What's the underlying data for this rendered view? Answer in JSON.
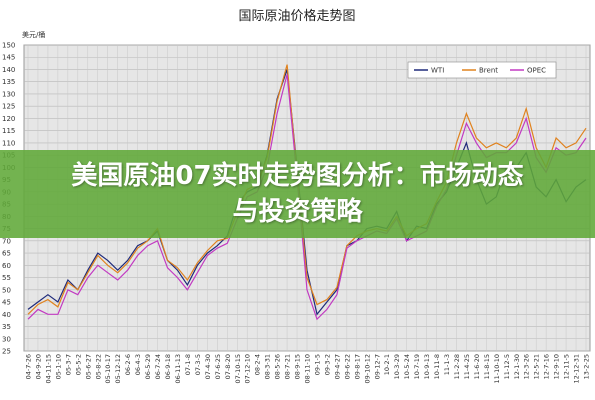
{
  "chart_data": {
    "type": "line",
    "title": "国际原油价格走势图",
    "y_label": "美元/桶",
    "annotation": "美国原油07实时走势图分析：市场动态与投资策略",
    "categories": [
      "04-7-26",
      "04-9-20",
      "04-11-15",
      "05-1-10",
      "05-3-7",
      "05-5-2",
      "05-6-27",
      "05-8-22",
      "05-10-17",
      "05-12-12",
      "06-2-6",
      "06-4-3",
      "06-5-29",
      "06-7-24",
      "06-9-18",
      "06-11-13",
      "07-1-8",
      "07-3-5",
      "07-4-30",
      "07-6-25",
      "07-8-20",
      "07-10-15",
      "07-12-10",
      "08-2-4",
      "08-3-31",
      "08-5-26",
      "08-7-21",
      "08-9-15",
      "08-11-10",
      "09-1-5",
      "09-3-2",
      "09-4-27",
      "09-6-22",
      "09-8-17",
      "09-10-12",
      "09-12-7",
      "10-2-1",
      "10-3-29",
      "10-5-24",
      "10-7-19",
      "10-9-13",
      "10-11-8",
      "11-1-3",
      "11-2-28",
      "11-4-25",
      "11-6-20",
      "11-8-15",
      "11-10-10",
      "11-12-5",
      "12-1-30",
      "12-3-26",
      "12-5-21",
      "12-7-16",
      "12-9-10",
      "12-11-5",
      "12-12-31",
      "13-2-25"
    ],
    "series": [
      {
        "name": "WTI",
        "color": "#1f2a7a",
        "values": [
          42,
          45,
          48,
          45,
          54,
          50,
          58,
          65,
          62,
          58,
          62,
          68,
          70,
          74,
          62,
          58,
          52,
          60,
          65,
          68,
          72,
          85,
          90,
          92,
          105,
          128,
          140,
          100,
          58,
          40,
          45,
          50,
          68,
          70,
          75,
          76,
          75,
          82,
          70,
          76,
          75,
          85,
          90,
          100,
          110,
          95,
          85,
          88,
          100,
          100,
          106,
          92,
          88,
          95,
          86,
          92,
          95
        ]
      },
      {
        "name": "Brent",
        "color": "#e0821e",
        "values": [
          40,
          44,
          46,
          43,
          53,
          50,
          57,
          64,
          60,
          57,
          61,
          67,
          70,
          75,
          62,
          59,
          54,
          61,
          66,
          70,
          71,
          82,
          91,
          93,
          104,
          127,
          142,
          98,
          55,
          44,
          46,
          51,
          68,
          72,
          74,
          75,
          74,
          80,
          72,
          75,
          77,
          86,
          94,
          110,
          122,
          112,
          108,
          110,
          108,
          112,
          124,
          108,
          100,
          112,
          108,
          110,
          116
        ]
      },
      {
        "name": "OPEC",
        "color": "#c23ac2",
        "values": [
          38,
          42,
          40,
          40,
          50,
          48,
          55,
          60,
          57,
          54,
          58,
          64,
          68,
          70,
          59,
          55,
          50,
          57,
          64,
          67,
          69,
          79,
          88,
          90,
          100,
          122,
          138,
          96,
          50,
          38,
          42,
          48,
          67,
          70,
          72,
          74,
          73,
          79,
          70,
          72,
          74,
          84,
          91,
          105,
          118,
          110,
          104,
          106,
          106,
          110,
          120,
          104,
          98,
          108,
          105,
          106,
          112
        ]
      }
    ],
    "ylim": [
      25,
      150
    ],
    "yticks": [
      25,
      30,
      35,
      40,
      45,
      50,
      55,
      60,
      65,
      70,
      75,
      80,
      85,
      90,
      95,
      100,
      105,
      110,
      115,
      120,
      125,
      130,
      135,
      140,
      145,
      150
    ],
    "grid": true,
    "legend": "top-right"
  }
}
